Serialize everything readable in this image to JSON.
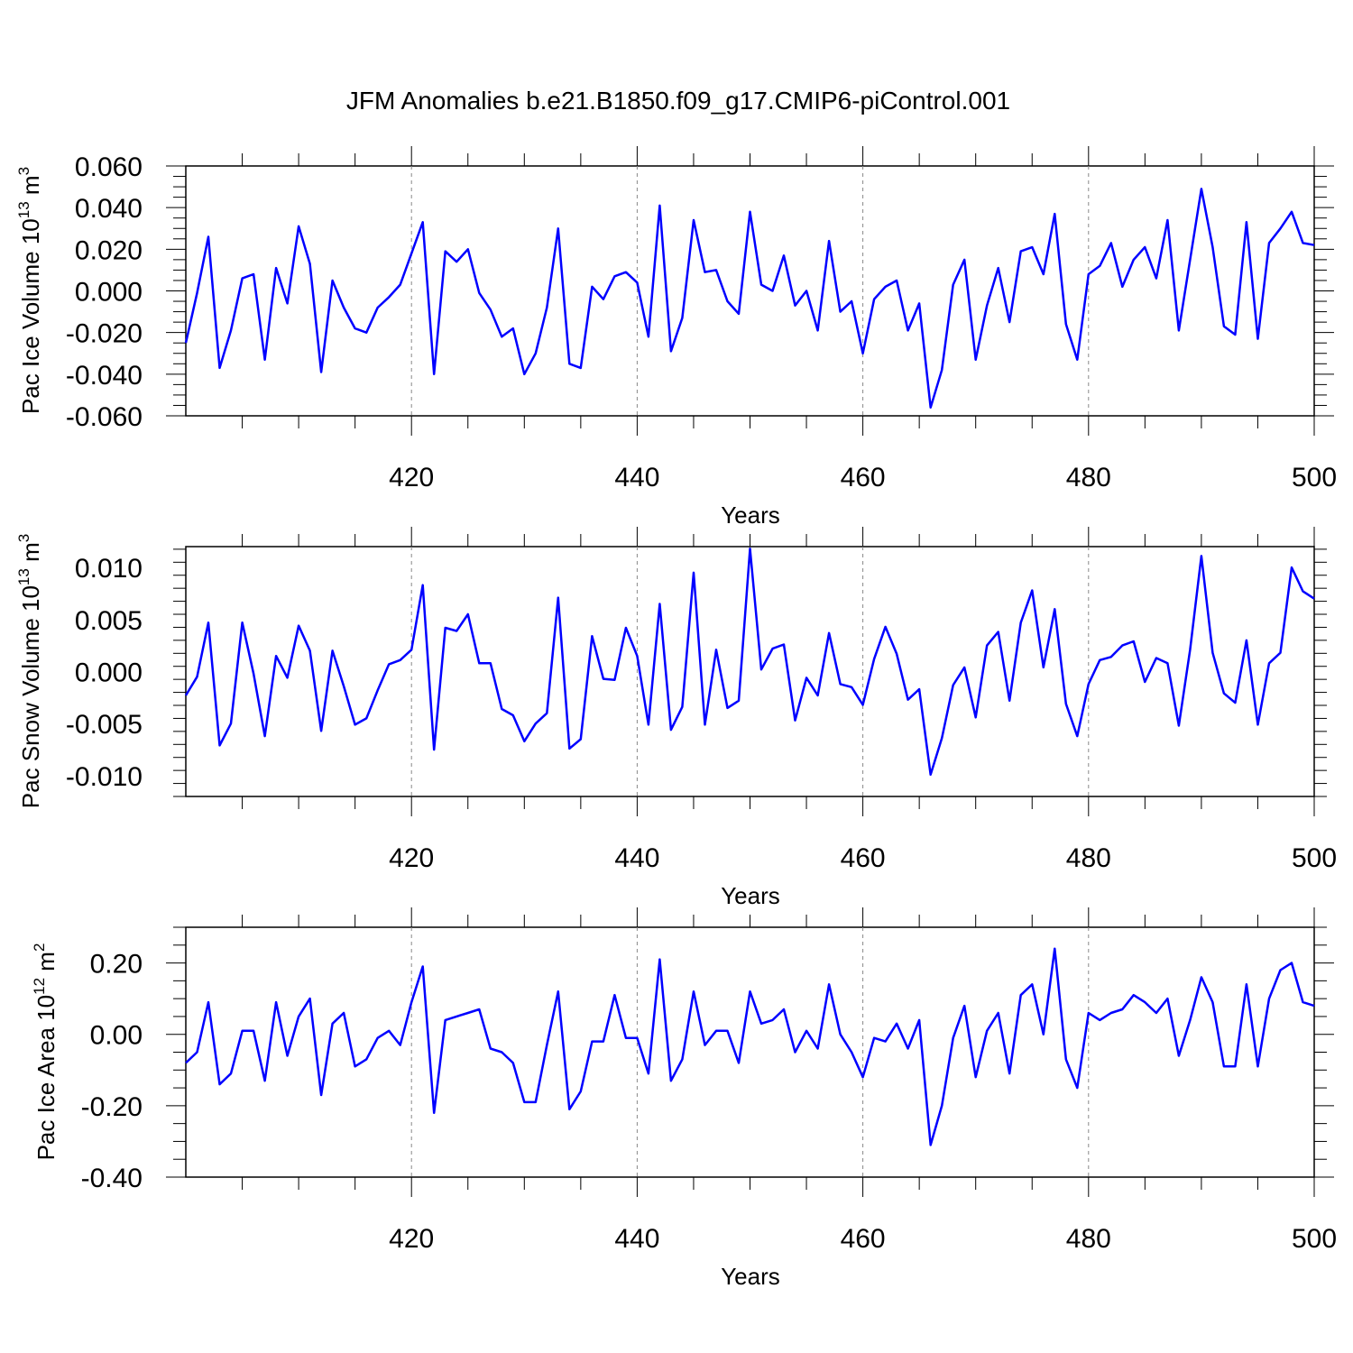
{
  "title": "JFM Anomalies b.e21.B1850.f09_g17.CMIP6-piControl.001",
  "line_color": "#0000ff",
  "chart_data": [
    {
      "type": "line",
      "ylabel": "Pac Ice Volume 10",
      "ylabel_exp": "13",
      "ylabel_unit": " m",
      "ylabel_unit_exp": "3",
      "xlabel": "Years",
      "xlim": [
        400,
        500
      ],
      "ylim": [
        -0.06,
        0.06
      ],
      "xticks": [
        "420",
        "440",
        "460",
        "480",
        "500"
      ],
      "yticks": [
        "0.060",
        "0.040",
        "0.020",
        "0.000",
        "-0.020",
        "-0.040",
        "-0.060"
      ],
      "series": [
        {
          "x": [
            400,
            401,
            402,
            403,
            404,
            405,
            406,
            407,
            408,
            409,
            410,
            411,
            412,
            413,
            414,
            415,
            416,
            417,
            418,
            419,
            420,
            421,
            422,
            423,
            424,
            425,
            426,
            427,
            428,
            429,
            430,
            431,
            432,
            433,
            434,
            435,
            436,
            437,
            438,
            439,
            440,
            441,
            442,
            443,
            444,
            445,
            446,
            447,
            448,
            449,
            450,
            451,
            452,
            453,
            454,
            455,
            456,
            457,
            458,
            459,
            460,
            461,
            462,
            463,
            464,
            465,
            466,
            467,
            468,
            469,
            470,
            471,
            472,
            473,
            474,
            475,
            476,
            477,
            478,
            479,
            480,
            481,
            482,
            483,
            484,
            485,
            486,
            487,
            488,
            489,
            490,
            491,
            492,
            493,
            494,
            495,
            496,
            497,
            498,
            499,
            500
          ],
          "values": [
            -0.025,
            -0.001,
            0.026,
            -0.037,
            -0.019,
            0.006,
            0.008,
            -0.033,
            0.011,
            -0.006,
            0.031,
            0.013,
            -0.039,
            0.005,
            -0.008,
            -0.018,
            -0.02,
            -0.008,
            -0.003,
            0.003,
            0.018,
            0.033,
            -0.04,
            0.019,
            0.014,
            0.02,
            -0.001,
            -0.009,
            -0.022,
            -0.018,
            -0.04,
            -0.03,
            -0.008,
            0.03,
            -0.035,
            -0.037,
            0.002,
            -0.004,
            0.007,
            0.009,
            0.004,
            -0.022,
            0.041,
            -0.029,
            -0.013,
            0.034,
            0.009,
            0.01,
            -0.005,
            -0.011,
            0.038,
            0.003,
            0.0,
            0.017,
            -0.007,
            0.0,
            -0.019,
            0.024,
            -0.01,
            -0.005,
            -0.03,
            -0.004,
            0.002,
            0.005,
            -0.019,
            -0.006,
            -0.056,
            -0.038,
            0.003,
            0.015,
            -0.033,
            -0.007,
            0.011,
            -0.015,
            0.019,
            0.021,
            0.008,
            0.037,
            -0.016,
            -0.033,
            0.008,
            0.012,
            0.023,
            0.002,
            0.015,
            0.021,
            0.006,
            0.034,
            -0.019,
            0.015,
            0.049,
            0.021,
            -0.017,
            -0.021,
            0.033,
            -0.023,
            0.023,
            0.03,
            0.038,
            0.023,
            0.022
          ]
        }
      ]
    },
    {
      "type": "line",
      "ylabel": "Pac Snow Volume 10",
      "ylabel_exp": "13",
      "ylabel_unit": " m",
      "ylabel_unit_exp": "3",
      "xlabel": "Years",
      "xlim": [
        400,
        500
      ],
      "ylim": [
        -0.012,
        0.012
      ],
      "xticks": [
        "420",
        "440",
        "460",
        "480",
        "500"
      ],
      "yticks": [
        "0.010",
        "0.005",
        "0.000",
        "-0.005",
        "-0.010"
      ],
      "series": [
        {
          "x": [
            400,
            401,
            402,
            403,
            404,
            405,
            406,
            407,
            408,
            409,
            410,
            411,
            412,
            413,
            414,
            415,
            416,
            417,
            418,
            419,
            420,
            421,
            422,
            423,
            424,
            425,
            426,
            427,
            428,
            429,
            430,
            431,
            432,
            433,
            434,
            435,
            436,
            437,
            438,
            439,
            440,
            441,
            442,
            443,
            444,
            445,
            446,
            447,
            448,
            449,
            450,
            451,
            452,
            453,
            454,
            455,
            456,
            457,
            458,
            459,
            460,
            461,
            462,
            463,
            464,
            465,
            466,
            467,
            468,
            469,
            470,
            471,
            472,
            473,
            474,
            475,
            476,
            477,
            478,
            479,
            480,
            481,
            482,
            483,
            484,
            485,
            486,
            487,
            488,
            489,
            490,
            491,
            492,
            493,
            494,
            495,
            496,
            497,
            498,
            499,
            500
          ],
          "values": [
            -0.0023,
            -0.0005,
            0.0047,
            -0.0071,
            -0.005,
            0.0047,
            -0.0002,
            -0.0062,
            0.0015,
            -0.0006,
            0.0044,
            0.002,
            -0.0057,
            0.002,
            -0.0014,
            -0.0051,
            -0.0045,
            -0.0018,
            0.0007,
            0.0011,
            0.0021,
            0.0083,
            -0.0075,
            0.0042,
            0.0039,
            0.0055,
            0.0008,
            0.0008,
            -0.0036,
            -0.0042,
            -0.0067,
            -0.005,
            -0.004,
            0.0071,
            -0.0074,
            -0.0065,
            0.0034,
            -0.0007,
            -0.0008,
            0.0042,
            0.0015,
            -0.0051,
            0.0065,
            -0.0056,
            -0.0034,
            0.0095,
            -0.0051,
            0.0021,
            -0.0035,
            -0.0028,
            0.0118,
            0.0002,
            0.0022,
            0.0026,
            -0.0047,
            -0.0006,
            -0.0023,
            0.0037,
            -0.0012,
            -0.0015,
            -0.0032,
            0.0012,
            0.0043,
            0.0017,
            -0.0027,
            -0.0017,
            -0.0099,
            -0.0064,
            -0.0013,
            0.0004,
            -0.0044,
            0.0025,
            0.0038,
            -0.0028,
            0.0047,
            0.0078,
            0.0004,
            0.006,
            -0.0031,
            -0.0062,
            -0.0012,
            0.0011,
            0.0014,
            0.0025,
            0.0029,
            -0.001,
            0.0013,
            0.0008,
            -0.0052,
            0.0021,
            0.0111,
            0.0018,
            -0.0021,
            -0.003,
            0.003,
            -0.0051,
            0.0008,
            0.0018,
            0.01,
            0.0077,
            0.007
          ]
        }
      ]
    },
    {
      "type": "line",
      "ylabel": "Pac Ice Area 10",
      "ylabel_exp": "12",
      "ylabel_unit": " m",
      "ylabel_unit_exp": "2",
      "xlabel": "Years",
      "xlim": [
        400,
        500
      ],
      "ylim": [
        -0.4,
        0.3
      ],
      "xticks": [
        "420",
        "440",
        "460",
        "480",
        "500"
      ],
      "yticks": [
        "0.20",
        "0.00",
        "-0.20",
        "-0.40"
      ],
      "series": [
        {
          "x": [
            400,
            401,
            402,
            403,
            404,
            405,
            406,
            407,
            408,
            409,
            410,
            411,
            412,
            413,
            414,
            415,
            416,
            417,
            418,
            419,
            420,
            421,
            422,
            423,
            424,
            425,
            426,
            427,
            428,
            429,
            430,
            431,
            432,
            433,
            434,
            435,
            436,
            437,
            438,
            439,
            440,
            441,
            442,
            443,
            444,
            445,
            446,
            447,
            448,
            449,
            450,
            451,
            452,
            453,
            454,
            455,
            456,
            457,
            458,
            459,
            460,
            461,
            462,
            463,
            464,
            465,
            466,
            467,
            468,
            469,
            470,
            471,
            472,
            473,
            474,
            475,
            476,
            477,
            478,
            479,
            480,
            481,
            482,
            483,
            484,
            485,
            486,
            487,
            488,
            489,
            490,
            491,
            492,
            493,
            494,
            495,
            496,
            497,
            498,
            499,
            500
          ],
          "values": [
            -0.08,
            -0.05,
            0.09,
            -0.14,
            -0.11,
            0.01,
            0.01,
            -0.13,
            0.09,
            -0.06,
            0.05,
            0.1,
            -0.17,
            0.03,
            0.06,
            -0.09,
            -0.07,
            -0.01,
            0.01,
            -0.03,
            0.09,
            0.19,
            -0.22,
            0.04,
            0.05,
            0.06,
            0.07,
            -0.04,
            -0.05,
            -0.08,
            -0.19,
            -0.19,
            -0.03,
            0.12,
            -0.21,
            -0.16,
            -0.02,
            -0.02,
            0.11,
            -0.01,
            -0.01,
            -0.11,
            0.21,
            -0.13,
            -0.07,
            0.12,
            -0.03,
            0.01,
            0.01,
            -0.08,
            0.12,
            0.03,
            0.04,
            0.07,
            -0.05,
            0.01,
            -0.04,
            0.14,
            0.0,
            -0.05,
            -0.12,
            -0.01,
            -0.02,
            0.03,
            -0.04,
            0.04,
            -0.31,
            -0.2,
            -0.01,
            0.08,
            -0.12,
            0.01,
            0.06,
            -0.11,
            0.11,
            0.14,
            0.0,
            0.24,
            -0.07,
            -0.15,
            0.06,
            0.04,
            0.06,
            0.07,
            0.11,
            0.09,
            0.06,
            0.1,
            -0.06,
            0.04,
            0.16,
            0.09,
            -0.09,
            -0.09,
            0.14,
            -0.09,
            0.1,
            0.18,
            0.2,
            0.09,
            0.08
          ]
        }
      ]
    }
  ]
}
